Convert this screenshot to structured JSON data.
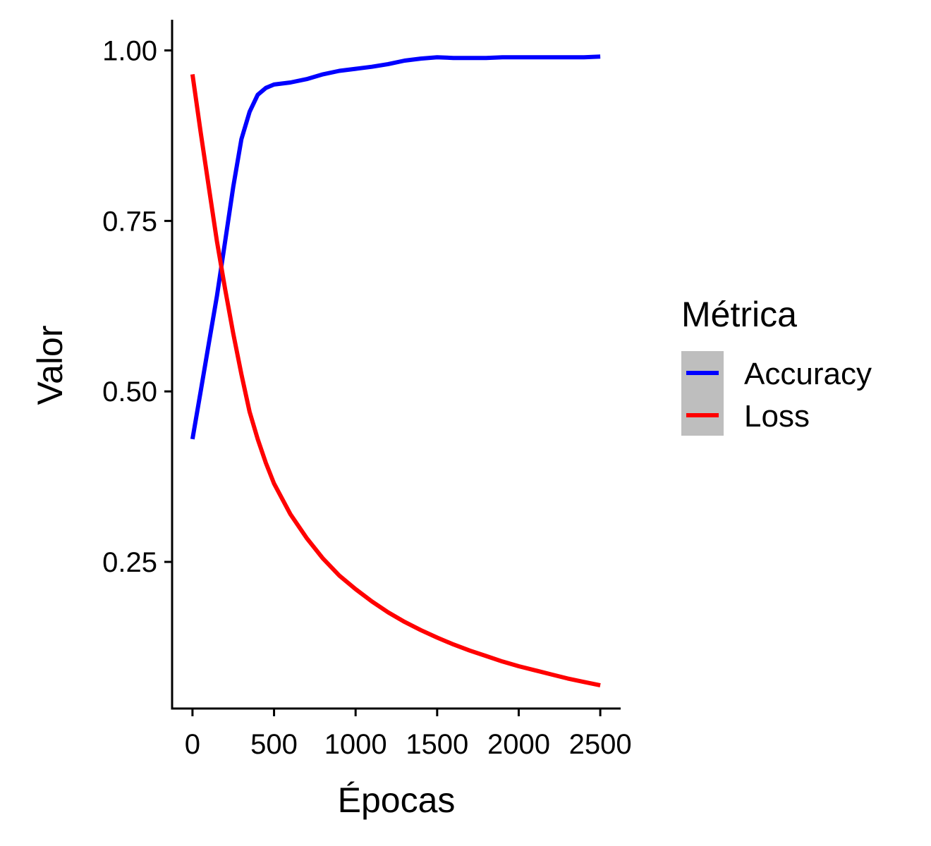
{
  "chart_data": {
    "type": "line",
    "title": "",
    "xlabel": "Épocas",
    "ylabel": "Valor",
    "xlim": [
      -125,
      2625
    ],
    "ylim": [
      0.035,
      1.045
    ],
    "x_ticks": [
      0,
      500,
      1000,
      1500,
      2000,
      2500
    ],
    "x_tick_labels": [
      "0",
      "500",
      "1000",
      "1500",
      "2000",
      "2500"
    ],
    "y_ticks": [
      0.25,
      0.5,
      0.75,
      1.0
    ],
    "y_tick_labels": [
      "0.25",
      "0.50",
      "0.75",
      "1.00"
    ],
    "grid": false,
    "legend": {
      "title": "Métrica",
      "position": "right"
    },
    "series": [
      {
        "name": "Accuracy",
        "color": "#0000ff",
        "x": [
          0,
          50,
          100,
          150,
          200,
          250,
          300,
          350,
          400,
          450,
          500,
          600,
          700,
          800,
          900,
          1000,
          1100,
          1200,
          1300,
          1400,
          1500,
          1600,
          1700,
          1800,
          1900,
          2000,
          2100,
          2200,
          2300,
          2400,
          2500
        ],
        "y": [
          0.43,
          0.5,
          0.57,
          0.64,
          0.72,
          0.8,
          0.87,
          0.91,
          0.935,
          0.945,
          0.95,
          0.953,
          0.958,
          0.965,
          0.97,
          0.973,
          0.976,
          0.98,
          0.985,
          0.988,
          0.99,
          0.989,
          0.989,
          0.989,
          0.99,
          0.99,
          0.99,
          0.99,
          0.99,
          0.99,
          0.991
        ]
      },
      {
        "name": "Loss",
        "color": "#ff0000",
        "x": [
          0,
          50,
          100,
          150,
          200,
          250,
          300,
          350,
          400,
          450,
          500,
          600,
          700,
          800,
          900,
          1000,
          1100,
          1200,
          1300,
          1400,
          1500,
          1600,
          1700,
          1800,
          1900,
          2000,
          2100,
          2200,
          2300,
          2400,
          2500
        ],
        "y": [
          0.965,
          0.88,
          0.8,
          0.72,
          0.65,
          0.585,
          0.525,
          0.47,
          0.43,
          0.395,
          0.365,
          0.32,
          0.285,
          0.255,
          0.23,
          0.21,
          0.192,
          0.176,
          0.162,
          0.15,
          0.139,
          0.129,
          0.12,
          0.112,
          0.104,
          0.097,
          0.091,
          0.085,
          0.079,
          0.074,
          0.069
        ]
      }
    ]
  }
}
